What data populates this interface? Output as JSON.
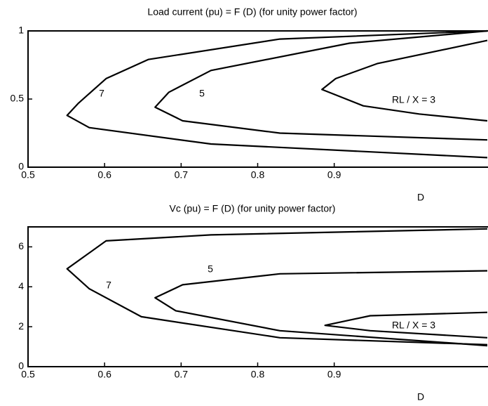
{
  "chart_data": [
    {
      "type": "line",
      "title": "Load current (pu) =  F (D)  (for unity power factor)",
      "x_label": "D",
      "xlim": [
        0.5,
        1.1
      ],
      "xticks": [
        0.5,
        0.6,
        0.7,
        0.8,
        0.9
      ],
      "ylim": [
        0,
        1
      ],
      "yticks": [
        0,
        0.5,
        1
      ],
      "grid": false,
      "series": [
        {
          "name": "7",
          "color": "#000000",
          "x": [
            1.1,
            0.829,
            0.657,
            0.602,
            0.566,
            0.551,
            0.58,
            0.739,
            1.1
          ],
          "values": [
            1.0,
            0.94,
            0.79,
            0.65,
            0.47,
            0.38,
            0.29,
            0.17,
            0.07
          ]
        },
        {
          "name": "5",
          "color": "#000000",
          "x": [
            1.1,
            0.92,
            0.739,
            0.684,
            0.666,
            0.702,
            0.829,
            1.1
          ],
          "values": [
            1.0,
            0.91,
            0.71,
            0.55,
            0.44,
            0.34,
            0.25,
            0.2
          ]
        },
        {
          "name": "RL / X = 3",
          "color": "#000000",
          "x": [
            1.1,
            0.956,
            0.902,
            0.884,
            0.938,
            1.011,
            1.1
          ],
          "values": [
            0.93,
            0.76,
            0.65,
            0.57,
            0.45,
            0.39,
            0.34
          ]
        }
      ]
    },
    {
      "type": "line",
      "title": "Vc (pu) =  F (D)  (for unity power factor)",
      "x_label": "D",
      "xlim": [
        0.5,
        1.1
      ],
      "xticks": [
        0.5,
        0.6,
        0.7,
        0.8,
        0.9
      ],
      "ylim": [
        0,
        7
      ],
      "yticks": [
        0,
        2,
        4,
        6
      ],
      "grid": false,
      "series": [
        {
          "name": "7",
          "color": "#000000",
          "x": [
            1.1,
            0.739,
            0.602,
            0.551,
            0.58,
            0.648,
            0.829,
            1.1
          ],
          "values": [
            6.9,
            6.6,
            6.3,
            4.9,
            3.9,
            2.5,
            1.45,
            1.1
          ]
        },
        {
          "name": "5",
          "color": "#000000",
          "x": [
            1.1,
            0.829,
            0.702,
            0.666,
            0.693,
            0.829,
            1.1
          ],
          "values": [
            4.8,
            4.65,
            4.1,
            3.45,
            2.8,
            1.8,
            1.05
          ]
        },
        {
          "name": "RL / X = 3",
          "color": "#000000",
          "x": [
            1.1,
            0.947,
            0.888,
            0.947,
            1.1
          ],
          "values": [
            2.72,
            2.55,
            2.07,
            1.8,
            1.45
          ]
        }
      ]
    }
  ]
}
